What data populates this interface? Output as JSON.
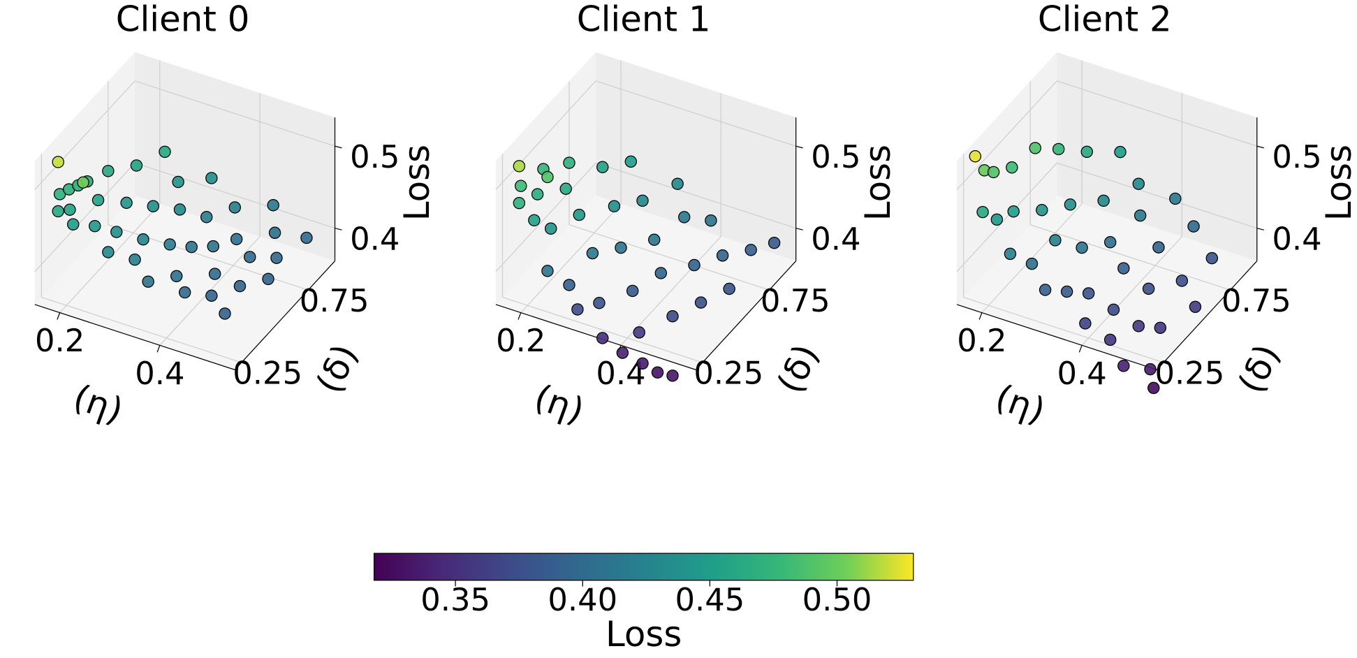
{
  "chart_data": [
    {
      "type": "scatter3d",
      "title": "Client 0",
      "xlabel": "(η)",
      "ylabel": "(δ)",
      "zlabel": "Loss",
      "xlim": [
        0.15,
        0.55
      ],
      "ylim": [
        0.2,
        0.95
      ],
      "zlim": [
        0.36,
        0.535
      ],
      "xticks": [
        0.2,
        0.4
      ],
      "yticks": [
        0.25,
        0.75
      ],
      "zticks": [
        0.4,
        0.5
      ],
      "grid": true,
      "x": [
        0.16,
        0.165,
        0.17,
        0.17,
        0.175,
        0.18,
        0.19,
        0.2,
        0.21,
        0.22,
        0.23,
        0.24,
        0.25,
        0.26,
        0.27,
        0.28,
        0.29,
        0.3,
        0.31,
        0.32,
        0.33,
        0.34,
        0.35,
        0.36,
        0.37,
        0.38,
        0.39,
        0.4,
        0.41,
        0.42,
        0.43,
        0.44,
        0.45,
        0.46,
        0.47,
        0.48,
        0.49,
        0.5,
        0.51,
        0.52,
        0.22,
        0.17
      ],
      "y": [
        0.35,
        0.4,
        0.45,
        0.3,
        0.5,
        0.35,
        0.6,
        0.3,
        0.45,
        0.7,
        0.35,
        0.55,
        0.8,
        0.4,
        0.3,
        0.6,
        0.75,
        0.45,
        0.35,
        0.65,
        0.85,
        0.5,
        0.3,
        0.7,
        0.55,
        0.4,
        0.8,
        0.6,
        0.35,
        0.7,
        0.5,
        0.9,
        0.4,
        0.65,
        0.8,
        0.5,
        0.35,
        0.7,
        0.6,
        0.85,
        0.3,
        0.3
      ],
      "z": [
        0.47,
        0.468,
        0.465,
        0.46,
        0.462,
        0.455,
        0.46,
        0.45,
        0.455,
        0.455,
        0.445,
        0.44,
        0.46,
        0.435,
        0.43,
        0.435,
        0.44,
        0.425,
        0.42,
        0.43,
        0.435,
        0.418,
        0.41,
        0.42,
        0.412,
        0.405,
        0.42,
        0.41,
        0.4,
        0.405,
        0.4,
        0.415,
        0.395,
        0.4,
        0.405,
        0.395,
        0.39,
        0.398,
        0.392,
        0.4,
        0.505,
        0.52
      ]
    },
    {
      "type": "scatter3d",
      "title": "Client 1",
      "xlabel": "(η)",
      "ylabel": "(δ)",
      "zlabel": "Loss",
      "xlim": [
        0.15,
        0.55
      ],
      "ylim": [
        0.2,
        0.95
      ],
      "zlim": [
        0.36,
        0.535
      ],
      "xticks": [
        0.2,
        0.4
      ],
      "yticks": [
        0.25,
        0.75
      ],
      "zticks": [
        0.4,
        0.5
      ],
      "grid": true,
      "x": [
        0.16,
        0.17,
        0.165,
        0.18,
        0.19,
        0.2,
        0.21,
        0.22,
        0.23,
        0.24,
        0.25,
        0.26,
        0.27,
        0.28,
        0.29,
        0.3,
        0.31,
        0.32,
        0.33,
        0.34,
        0.35,
        0.36,
        0.37,
        0.38,
        0.39,
        0.4,
        0.41,
        0.42,
        0.43,
        0.44,
        0.45,
        0.46,
        0.47,
        0.48,
        0.49,
        0.5,
        0.51,
        0.52,
        0.17,
        0.2
      ],
      "y": [
        0.35,
        0.3,
        0.5,
        0.4,
        0.6,
        0.3,
        0.5,
        0.35,
        0.7,
        0.25,
        0.45,
        0.8,
        0.3,
        0.6,
        0.4,
        0.25,
        0.7,
        0.5,
        0.3,
        0.85,
        0.25,
        0.6,
        0.4,
        0.75,
        0.25,
        0.5,
        0.3,
        0.8,
        0.25,
        0.6,
        0.4,
        0.25,
        0.7,
        0.5,
        0.25,
        0.8,
        0.6,
        0.9,
        0.3,
        0.4
      ],
      "z": [
        0.48,
        0.47,
        0.475,
        0.465,
        0.47,
        0.455,
        0.46,
        0.44,
        0.455,
        0.41,
        0.445,
        0.45,
        0.39,
        0.435,
        0.415,
        0.375,
        0.43,
        0.41,
        0.38,
        0.43,
        0.35,
        0.41,
        0.385,
        0.415,
        0.34,
        0.395,
        0.36,
        0.41,
        0.335,
        0.395,
        0.37,
        0.33,
        0.395,
        0.375,
        0.332,
        0.39,
        0.38,
        0.385,
        0.515,
        0.49
      ]
    },
    {
      "type": "scatter3d",
      "title": "Client 2",
      "xlabel": "(η)",
      "ylabel": "(δ)",
      "zlabel": "Loss",
      "xlim": [
        0.15,
        0.55
      ],
      "ylim": [
        0.2,
        0.95
      ],
      "zlim": [
        0.36,
        0.535
      ],
      "xticks": [
        0.2,
        0.4
      ],
      "yticks": [
        0.25,
        0.75
      ],
      "zticks": [
        0.4,
        0.5
      ],
      "grid": true,
      "x": [
        0.16,
        0.165,
        0.17,
        0.175,
        0.18,
        0.19,
        0.2,
        0.21,
        0.22,
        0.23,
        0.24,
        0.25,
        0.26,
        0.27,
        0.28,
        0.29,
        0.3,
        0.31,
        0.32,
        0.33,
        0.34,
        0.35,
        0.36,
        0.37,
        0.38,
        0.39,
        0.4,
        0.41,
        0.42,
        0.43,
        0.44,
        0.45,
        0.46,
        0.47,
        0.48,
        0.49,
        0.5,
        0.51,
        0.52,
        0.53
      ],
      "y": [
        0.3,
        0.35,
        0.4,
        0.3,
        0.5,
        0.35,
        0.6,
        0.4,
        0.7,
        0.3,
        0.5,
        0.8,
        0.35,
        0.6,
        0.45,
        0.9,
        0.3,
        0.7,
        0.5,
        0.35,
        0.85,
        0.6,
        0.4,
        0.75,
        0.3,
        0.55,
        0.9,
        0.4,
        0.7,
        0.3,
        0.55,
        0.85,
        0.4,
        0.25,
        0.65,
        0.45,
        0.8,
        0.3,
        0.6,
        0.25
      ],
      "z": [
        0.525,
        0.5,
        0.49,
        0.46,
        0.48,
        0.445,
        0.49,
        0.45,
        0.475,
        0.42,
        0.44,
        0.46,
        0.405,
        0.435,
        0.42,
        0.45,
        0.39,
        0.43,
        0.41,
        0.385,
        0.43,
        0.405,
        0.38,
        0.415,
        0.365,
        0.39,
        0.415,
        0.37,
        0.395,
        0.355,
        0.375,
        0.4,
        0.36,
        0.34,
        0.375,
        0.355,
        0.38,
        0.335,
        0.36,
        0.325
      ]
    }
  ],
  "colorbar": {
    "label": "Loss",
    "colormap": "viridis",
    "clim": [
      0.318,
      0.53
    ],
    "ticks": [
      0.35,
      {
        "value": 0.4,
        "label": "0.40"
      },
      0.45,
      {
        "value": 0.5,
        "label": "0.50"
      }
    ]
  }
}
